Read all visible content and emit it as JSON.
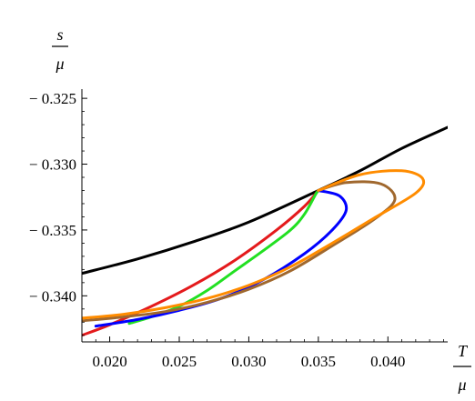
{
  "chart_data": {
    "type": "line",
    "xlabel": {
      "numerator": "T",
      "denominator": "μ"
    },
    "ylabel": {
      "numerator": "s",
      "denominator": "μ"
    },
    "xlim": [
      0.018,
      0.0443
    ],
    "ylim": [
      -0.3435,
      -0.3243
    ],
    "x_ticks": [
      {
        "value": 0.02,
        "label": "0.020"
      },
      {
        "value": 0.025,
        "label": "0.025"
      },
      {
        "value": 0.03,
        "label": "0.030"
      },
      {
        "value": 0.035,
        "label": "0.035"
      },
      {
        "value": 0.04,
        "label": "0.040"
      }
    ],
    "y_ticks": [
      {
        "value": -0.325,
        "label": "− 0.325"
      },
      {
        "value": -0.33,
        "label": "− 0.330"
      },
      {
        "value": -0.335,
        "label": "− 0.335"
      },
      {
        "value": -0.34,
        "label": "− 0.340"
      }
    ],
    "grid": false,
    "legend": "none",
    "series": [
      {
        "color": "#000000",
        "points": [
          [
            0.018,
            -0.3383
          ],
          [
            0.022,
            -0.3372
          ],
          [
            0.026,
            -0.3359
          ],
          [
            0.03,
            -0.3344
          ],
          [
            0.035,
            -0.332
          ],
          [
            0.038,
            -0.3305
          ],
          [
            0.041,
            -0.3288
          ],
          [
            0.0443,
            -0.3272
          ]
        ]
      },
      {
        "color": "#e41a1c",
        "points": [
          [
            0.018,
            -0.343
          ],
          [
            0.02,
            -0.3422
          ],
          [
            0.023,
            -0.3408
          ],
          [
            0.026,
            -0.3392
          ],
          [
            0.029,
            -0.3373
          ],
          [
            0.032,
            -0.335
          ],
          [
            0.034,
            -0.3332
          ],
          [
            0.035,
            -0.332
          ]
        ]
      },
      {
        "color": "#22e022",
        "points": [
          [
            0.0214,
            -0.3421
          ],
          [
            0.023,
            -0.3416
          ],
          [
            0.025,
            -0.3408
          ],
          [
            0.027,
            -0.3396
          ],
          [
            0.029,
            -0.3381
          ],
          [
            0.031,
            -0.3366
          ],
          [
            0.033,
            -0.335
          ],
          [
            0.034,
            -0.3338
          ],
          [
            0.0348,
            -0.3323
          ],
          [
            0.035,
            -0.332
          ]
        ]
      },
      {
        "color": "#0000ff",
        "points": [
          [
            0.019,
            -0.3423
          ],
          [
            0.022,
            -0.3418
          ],
          [
            0.025,
            -0.3411
          ],
          [
            0.028,
            -0.3402
          ],
          [
            0.031,
            -0.3388
          ],
          [
            0.034,
            -0.3368
          ],
          [
            0.036,
            -0.335
          ],
          [
            0.037,
            -0.3335
          ],
          [
            0.0365,
            -0.3324
          ],
          [
            0.035,
            -0.332
          ]
        ]
      },
      {
        "color": "#a0682e",
        "points": [
          [
            0.018,
            -0.3419
          ],
          [
            0.021,
            -0.3416
          ],
          [
            0.024,
            -0.3412
          ],
          [
            0.027,
            -0.3405
          ],
          [
            0.03,
            -0.3395
          ],
          [
            0.033,
            -0.3381
          ],
          [
            0.036,
            -0.3362
          ],
          [
            0.039,
            -0.3342
          ],
          [
            0.0405,
            -0.3327
          ],
          [
            0.0395,
            -0.3315
          ],
          [
            0.037,
            -0.3314
          ],
          [
            0.035,
            -0.332
          ]
        ]
      },
      {
        "color": "#ff8c00",
        "points": [
          [
            0.018,
            -0.3417
          ],
          [
            0.021,
            -0.3414
          ],
          [
            0.024,
            -0.3409
          ],
          [
            0.027,
            -0.3402
          ],
          [
            0.03,
            -0.3392
          ],
          [
            0.033,
            -0.3378
          ],
          [
            0.036,
            -0.336
          ],
          [
            0.039,
            -0.3341
          ],
          [
            0.042,
            -0.3322
          ],
          [
            0.0425,
            -0.3311
          ],
          [
            0.041,
            -0.3305
          ],
          [
            0.038,
            -0.3308
          ],
          [
            0.035,
            -0.332
          ]
        ]
      }
    ]
  }
}
